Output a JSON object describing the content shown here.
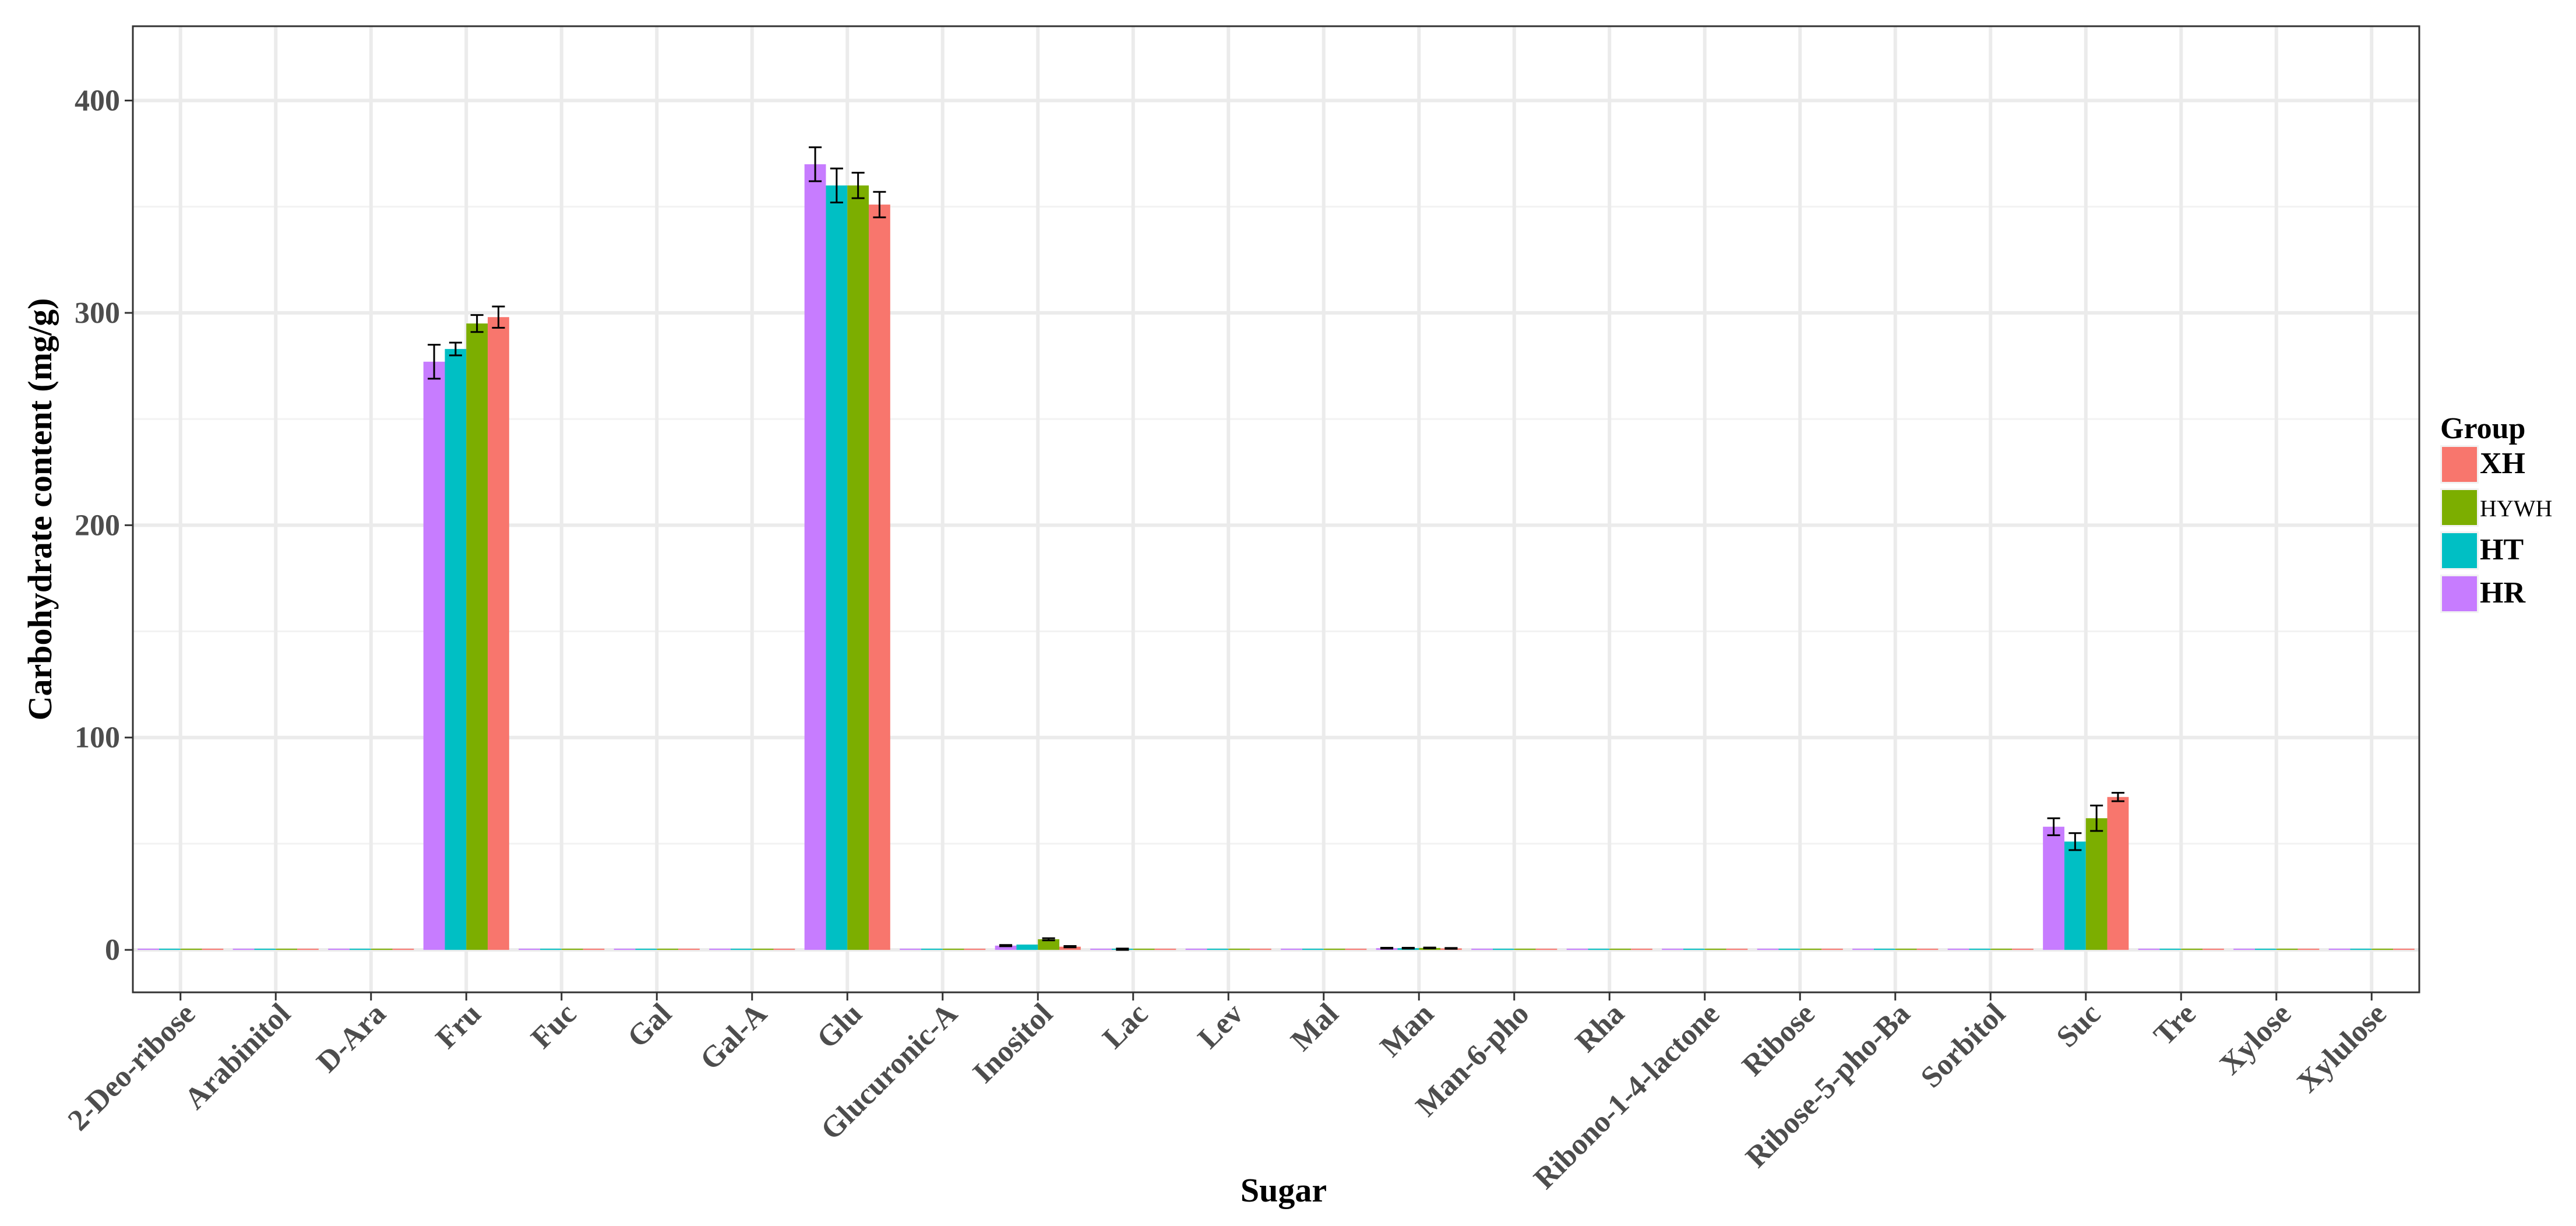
{
  "chart_data": {
    "type": "bar",
    "title": "",
    "xlabel": "Sugar",
    "ylabel": "Carbohydrate content (mg/g)",
    "ylim": [
      -20,
      435
    ],
    "yticks": [
      0,
      100,
      200,
      300,
      400
    ],
    "grid": true,
    "legend_title": "Group",
    "legend_position": "right",
    "categories": [
      "2-Deo-ribose",
      "Arabinitol",
      "D-Ara",
      "Fru",
      "Fuc",
      "Gal",
      "Gal-A",
      "Glu",
      "Glucuronic-A",
      "Inositol",
      "Lac",
      "Lev",
      "Mal",
      "Man",
      "Man-6-pho",
      "Rha",
      "Ribono-1-4-lactone",
      "Ribose",
      "Ribose-5-pho-Ba",
      "Sorbitol",
      "Suc",
      "Tre",
      "Xylose",
      "Xylulose"
    ],
    "series": [
      {
        "name": "HR",
        "color": "#C77CFF",
        "values": [
          0.3,
          0.3,
          0.3,
          277,
          0.3,
          0.4,
          0.3,
          370,
          0.4,
          2.0,
          0.3,
          0.3,
          0.3,
          0.8,
          0.3,
          0.3,
          0.3,
          0.3,
          0.3,
          0.3,
          58,
          0.3,
          0.3,
          0.3
        ],
        "errors": [
          0,
          0,
          0,
          8,
          0,
          0,
          0,
          8,
          0,
          0.3,
          0,
          0,
          0,
          0.2,
          0,
          0,
          0,
          0,
          0,
          0,
          4,
          0,
          0,
          0
        ]
      },
      {
        "name": "HT",
        "color": "#00BFC4",
        "values": [
          0.3,
          0.3,
          0.3,
          283,
          0.3,
          0.4,
          0.3,
          360,
          0.4,
          2.5,
          0.3,
          0.3,
          0.3,
          0.8,
          0.3,
          0.3,
          0.3,
          0.3,
          0.3,
          0.3,
          51,
          0.3,
          0.3,
          0.3
        ],
        "errors": [
          0,
          0,
          0,
          3,
          0,
          0,
          0,
          8,
          0,
          0,
          0.3,
          0,
          0,
          0.2,
          0,
          0,
          0,
          0,
          0,
          0,
          4,
          0,
          0,
          0
        ]
      },
      {
        "name": "HYWH",
        "color": "#7CAE00",
        "values": [
          0.3,
          0.3,
          0.3,
          295,
          0.3,
          0.4,
          0.3,
          360,
          0.4,
          5.0,
          0.3,
          0.3,
          0.3,
          0.9,
          0.3,
          0.3,
          0.3,
          0.3,
          0.3,
          0.3,
          62,
          0.3,
          0.3,
          0.3
        ],
        "errors": [
          0,
          0,
          0,
          4,
          0,
          0,
          0,
          6,
          0,
          0.5,
          0,
          0,
          0,
          0.2,
          0,
          0,
          0,
          0,
          0,
          0,
          6,
          0,
          0,
          0
        ]
      },
      {
        "name": "XH",
        "color": "#F8766D",
        "values": [
          0.3,
          0.3,
          0.3,
          298,
          0.3,
          0.4,
          0.3,
          351,
          0.4,
          1.5,
          0.3,
          0.3,
          0.3,
          0.7,
          0.3,
          0.3,
          0.3,
          0.3,
          0.3,
          0.3,
          72,
          0.3,
          0.3,
          0.3
        ],
        "errors": [
          0,
          0,
          0,
          5,
          0,
          0,
          0,
          6,
          0,
          0.3,
          0,
          0,
          0,
          0.2,
          0,
          0,
          0,
          0,
          0,
          0,
          2,
          0,
          0,
          0
        ]
      }
    ],
    "legend_order": [
      "XH",
      "HYWH",
      "HT",
      "HR"
    ]
  }
}
